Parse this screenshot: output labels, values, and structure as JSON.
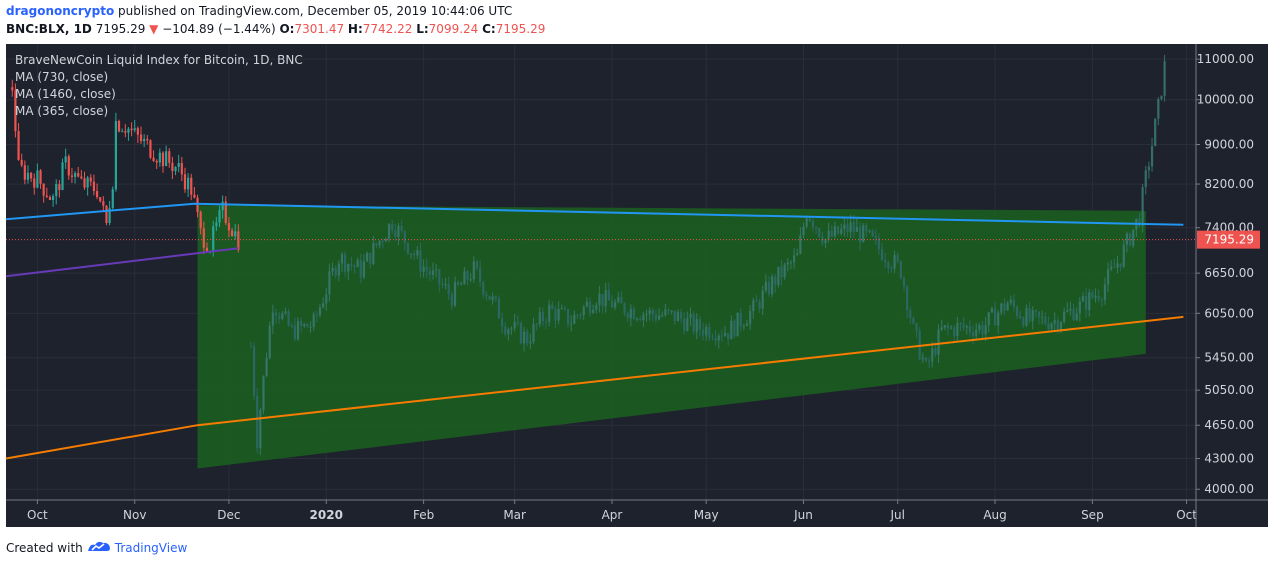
{
  "header": {
    "author": "dragononcrypto",
    "published_text": " published on TradingView.com, December 05, 2019 10:44:06 UTC",
    "symbol": "BNC:BLX, 1D",
    "last": "7195.29",
    "change_arrow": "▼",
    "change": "−104.89 (−1.44%)",
    "o_label": "O:",
    "o_value": "7301.47",
    "h_label": "H:",
    "h_value": "7742.22",
    "l_label": "L:",
    "l_value": "7099.24",
    "c_label": "C:",
    "c_value": "7195.29"
  },
  "legend": {
    "title": "BraveNewCoin Liquid Index for Bitcoin, 1D, BNC",
    "ma1": "MA (730, close)",
    "ma2": "MA (1460, close)",
    "ma3": "MA (365, close)"
  },
  "footer": {
    "created_with": "Created with",
    "brand": "TradingView"
  },
  "colors": {
    "background": "#1e222d",
    "grid": "#2a2e39",
    "up_candle": "#26a69a",
    "down_candle": "#ef5350",
    "ma_730": "#2196f3",
    "ma_1460": "#f57c00",
    "ma_365": "#673ab7",
    "projection_fill": "#1b5e20",
    "projection_candle": "#3a7c73",
    "price_tag": "#ef5350"
  },
  "chart_data": {
    "type": "candlestick",
    "title": "BraveNewCoin Liquid Index for Bitcoin, 1D, BNC",
    "y_scale": "log",
    "ylim": [
      3900,
      11400
    ],
    "y_ticks": [
      "11000.00",
      "10000.00",
      "9000.00",
      "8200.00",
      "7400.00",
      "6650.00",
      "6050.00",
      "5450.00",
      "5050.00",
      "4650.00",
      "4300.00",
      "4000.00"
    ],
    "x_ticks": [
      "Oct",
      "Nov",
      "Dec",
      "2020",
      "Feb",
      "Mar",
      "Apr",
      "May",
      "Jun",
      "Jul",
      "Aug",
      "Sep",
      "Oct"
    ],
    "last_price": 7195.29,
    "last_price_label": "7195.29",
    "price_path": [
      [
        "2019-09-23",
        10300
      ],
      [
        "2019-09-25",
        8500
      ],
      [
        "2019-10-01",
        8300
      ],
      [
        "2019-10-06",
        7900
      ],
      [
        "2019-10-10",
        8600
      ],
      [
        "2019-10-15",
        8200
      ],
      [
        "2019-10-20",
        8100
      ],
      [
        "2019-10-23",
        7450
      ],
      [
        "2019-10-25",
        8300
      ],
      [
        "2019-10-26",
        9500
      ],
      [
        "2019-10-29",
        9400
      ],
      [
        "2019-11-01",
        9200
      ],
      [
        "2019-11-08",
        8800
      ],
      [
        "2019-11-15",
        8500
      ],
      [
        "2019-11-19",
        8100
      ],
      [
        "2019-11-22",
        7300
      ],
      [
        "2019-11-25",
        7100
      ],
      [
        "2019-11-29",
        7700
      ],
      [
        "2019-12-01",
        7500
      ],
      [
        "2019-12-04",
        7195
      ]
    ],
    "projection_path": [
      [
        "2019-12-08",
        5600
      ],
      [
        "2019-12-10",
        4500
      ],
      [
        "2019-12-15",
        6200
      ],
      [
        "2019-12-21",
        5800
      ],
      [
        "2019-12-28",
        5900
      ],
      [
        "2020-01-05",
        6900
      ],
      [
        "2020-01-12",
        6700
      ],
      [
        "2020-01-22",
        7500
      ],
      [
        "2020-01-31",
        6800
      ],
      [
        "2020-02-10",
        6300
      ],
      [
        "2020-02-17",
        6700
      ],
      [
        "2020-02-27",
        5900
      ],
      [
        "2020-03-05",
        5700
      ],
      [
        "2020-03-12",
        6100
      ],
      [
        "2020-03-19",
        5950
      ],
      [
        "2020-03-27",
        6300
      ],
      [
        "2020-04-03",
        6150
      ],
      [
        "2020-04-12",
        6050
      ],
      [
        "2020-04-22",
        6000
      ],
      [
        "2020-04-28",
        5850
      ],
      [
        "2020-05-08",
        5800
      ],
      [
        "2020-05-16",
        6100
      ],
      [
        "2020-05-22",
        6500
      ],
      [
        "2020-05-30",
        6900
      ],
      [
        "2020-06-02",
        7700
      ],
      [
        "2020-06-08",
        7200
      ],
      [
        "2020-06-16",
        7400
      ],
      [
        "2020-06-22",
        7200
      ],
      [
        "2020-06-28",
        6900
      ],
      [
        "2020-07-02",
        6700
      ],
      [
        "2020-07-06",
        5800
      ],
      [
        "2020-07-10",
        5300
      ],
      [
        "2020-07-15",
        5800
      ],
      [
        "2020-07-20",
        5850
      ],
      [
        "2020-07-28",
        5850
      ],
      [
        "2020-08-05",
        6200
      ],
      [
        "2020-08-12",
        5950
      ],
      [
        "2020-08-20",
        5950
      ],
      [
        "2020-08-28",
        6150
      ],
      [
        "2020-09-04",
        6400
      ],
      [
        "2020-09-10",
        6900
      ],
      [
        "2020-09-16",
        7600
      ],
      [
        "2020-09-18",
        8300
      ],
      [
        "2020-09-20",
        9000
      ],
      [
        "2020-09-22",
        9800
      ],
      [
        "2020-09-24",
        10800
      ]
    ],
    "ma_730": [
      [
        "2019-09-21",
        7550
      ],
      [
        "2019-11-20",
        7830
      ],
      [
        "2020-09-30",
        7450
      ]
    ],
    "ma_1460": [
      [
        "2019-09-21",
        4300
      ],
      [
        "2019-11-21",
        4650
      ],
      [
        "2020-09-30",
        6000
      ]
    ],
    "ma_365": [
      [
        "2019-09-21",
        6600
      ],
      [
        "2019-12-04",
        7050
      ]
    ],
    "projection_region": [
      [
        "2019-11-21",
        7800
      ],
      [
        "2020-09-18",
        7700
      ],
      [
        "2020-09-18",
        5500
      ],
      [
        "2019-11-21",
        4200
      ]
    ]
  }
}
